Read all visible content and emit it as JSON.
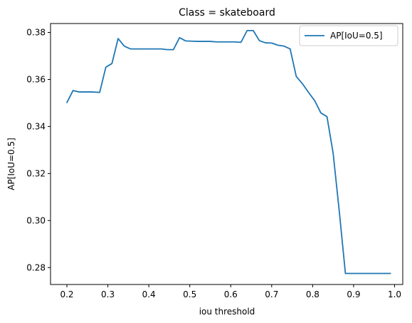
{
  "chart_data": {
    "type": "line",
    "title": "Class = skateboard",
    "xlabel": "iou threshold",
    "ylabel": "AP[IoU=0.5]",
    "xlim": [
      0.16,
      1.02
    ],
    "ylim": [
      0.2728,
      0.3838
    ],
    "xticks": [
      0.2,
      0.3,
      0.4,
      0.5,
      0.6,
      0.7,
      0.8,
      0.9,
      1.0
    ],
    "xtick_labels": [
      "0.2",
      "0.3",
      "0.4",
      "0.5",
      "0.6",
      "0.7",
      "0.8",
      "0.9",
      "1.0"
    ],
    "yticks": [
      0.28,
      0.3,
      0.32,
      0.34,
      0.36,
      0.38
    ],
    "ytick_labels": [
      "0.28",
      "0.30",
      "0.32",
      "0.34",
      "0.36",
      "0.38"
    ],
    "grid": false,
    "legend": {
      "position": "top-right",
      "entries": [
        "AP[IoU=0.5]"
      ]
    },
    "series": [
      {
        "name": "AP[IoU=0.5]",
        "color": "#1f77b4",
        "x": [
          0.2,
          0.215,
          0.23,
          0.245,
          0.26,
          0.28,
          0.295,
          0.31,
          0.325,
          0.34,
          0.355,
          0.37,
          0.385,
          0.4,
          0.415,
          0.43,
          0.445,
          0.46,
          0.475,
          0.49,
          0.505,
          0.52,
          0.535,
          0.55,
          0.565,
          0.58,
          0.595,
          0.61,
          0.625,
          0.64,
          0.655,
          0.67,
          0.685,
          0.7,
          0.715,
          0.73,
          0.745,
          0.76,
          0.775,
          0.79,
          0.805,
          0.82,
          0.835,
          0.85,
          0.865,
          0.88,
          0.895,
          0.91,
          0.925,
          0.94,
          0.955,
          0.97,
          0.99
        ],
        "values": [
          0.3502,
          0.3553,
          0.3547,
          0.3547,
          0.3547,
          0.3545,
          0.3652,
          0.3668,
          0.3774,
          0.3742,
          0.373,
          0.373,
          0.373,
          0.373,
          0.373,
          0.373,
          0.3727,
          0.3727,
          0.3778,
          0.3764,
          0.3763,
          0.3762,
          0.3762,
          0.3762,
          0.376,
          0.376,
          0.376,
          0.376,
          0.3758,
          0.3808,
          0.3808,
          0.3765,
          0.3756,
          0.3755,
          0.3746,
          0.3742,
          0.373,
          0.3613,
          0.3582,
          0.3545,
          0.351,
          0.3458,
          0.3442,
          0.3287,
          0.304,
          0.2775,
          0.2775,
          0.2775,
          0.2775,
          0.2775,
          0.2775,
          0.2775,
          0.2775
        ]
      }
    ]
  }
}
